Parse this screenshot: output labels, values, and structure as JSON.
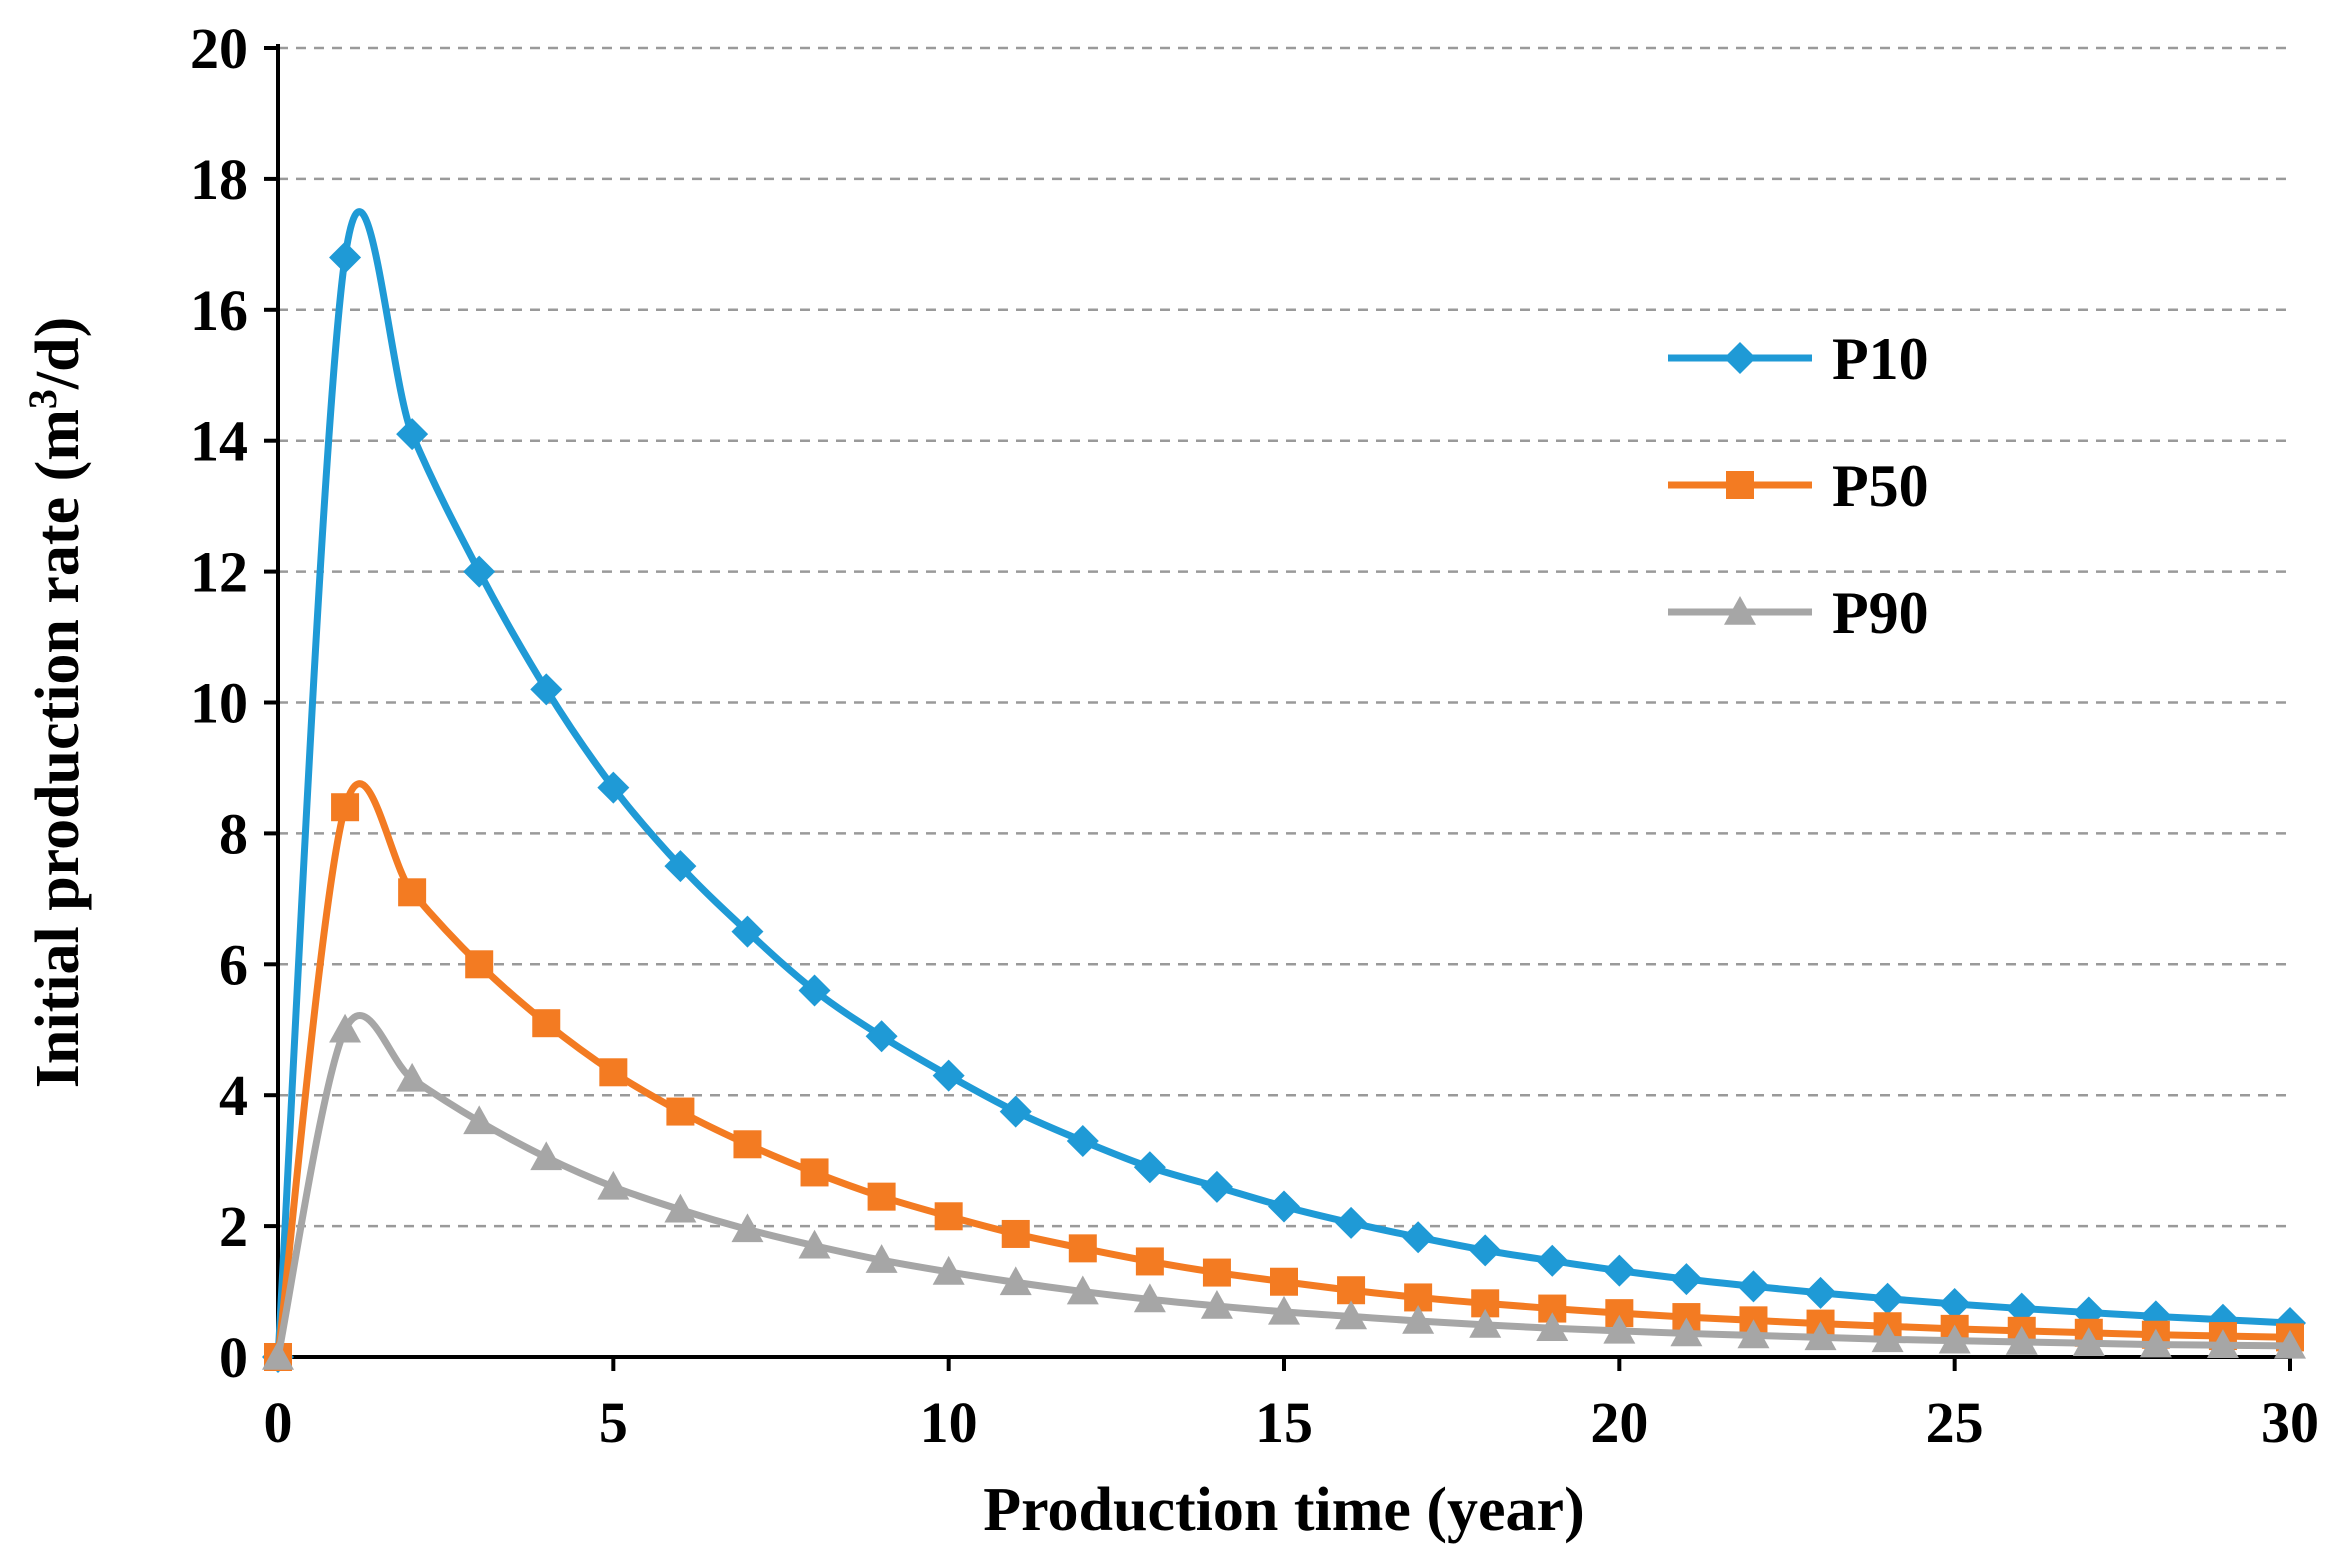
{
  "chart_data": {
    "type": "line",
    "title": "",
    "xlabel": "Production time (year)",
    "ylabel": "Initial  production rate (m",
    "ylabel_superscript": "3",
    "ylabel_suffix": "/d)",
    "xlim": [
      0,
      30
    ],
    "ylim": [
      0,
      20
    ],
    "xticks": [
      "0",
      "5",
      "10",
      "15",
      "20",
      "25",
      "30"
    ],
    "yticks": [
      "0",
      "2",
      "4",
      "6",
      "8",
      "10",
      "12",
      "14",
      "16",
      "18",
      "20"
    ],
    "grid": "horizontal dashed",
    "legend_position": "top-right",
    "x": [
      0,
      1,
      2,
      3,
      4,
      5,
      6,
      7,
      8,
      9,
      10,
      11,
      12,
      13,
      14,
      15,
      16,
      17,
      18,
      19,
      20,
      21,
      22,
      23,
      24,
      25,
      26,
      27,
      28,
      29,
      30
    ],
    "series": [
      {
        "name": "P10",
        "color": "#1f9ad6",
        "marker": "diamond",
        "values": [
          0.0,
          16.8,
          14.1,
          12.0,
          10.2,
          8.7,
          7.5,
          6.5,
          5.6,
          4.9,
          4.3,
          3.75,
          3.3,
          2.9,
          2.6,
          2.3,
          2.05,
          1.83,
          1.63,
          1.47,
          1.32,
          1.19,
          1.08,
          0.98,
          0.89,
          0.81,
          0.74,
          0.68,
          0.62,
          0.57,
          0.52
        ]
      },
      {
        "name": "P50",
        "color": "#f37b22",
        "marker": "square",
        "values": [
          0.0,
          8.4,
          7.1,
          6.0,
          5.1,
          4.35,
          3.75,
          3.25,
          2.82,
          2.45,
          2.15,
          1.88,
          1.66,
          1.46,
          1.29,
          1.15,
          1.02,
          0.91,
          0.82,
          0.74,
          0.67,
          0.61,
          0.56,
          0.51,
          0.47,
          0.43,
          0.4,
          0.37,
          0.34,
          0.32,
          0.3
        ]
      },
      {
        "name": "P90",
        "color": "#a6a6a6",
        "marker": "triangle",
        "values": [
          0.0,
          5.0,
          4.25,
          3.6,
          3.05,
          2.6,
          2.25,
          1.95,
          1.7,
          1.48,
          1.3,
          1.14,
          1.0,
          0.88,
          0.78,
          0.69,
          0.62,
          0.55,
          0.49,
          0.44,
          0.4,
          0.36,
          0.33,
          0.3,
          0.27,
          0.25,
          0.23,
          0.21,
          0.19,
          0.18,
          0.17
        ]
      }
    ]
  }
}
